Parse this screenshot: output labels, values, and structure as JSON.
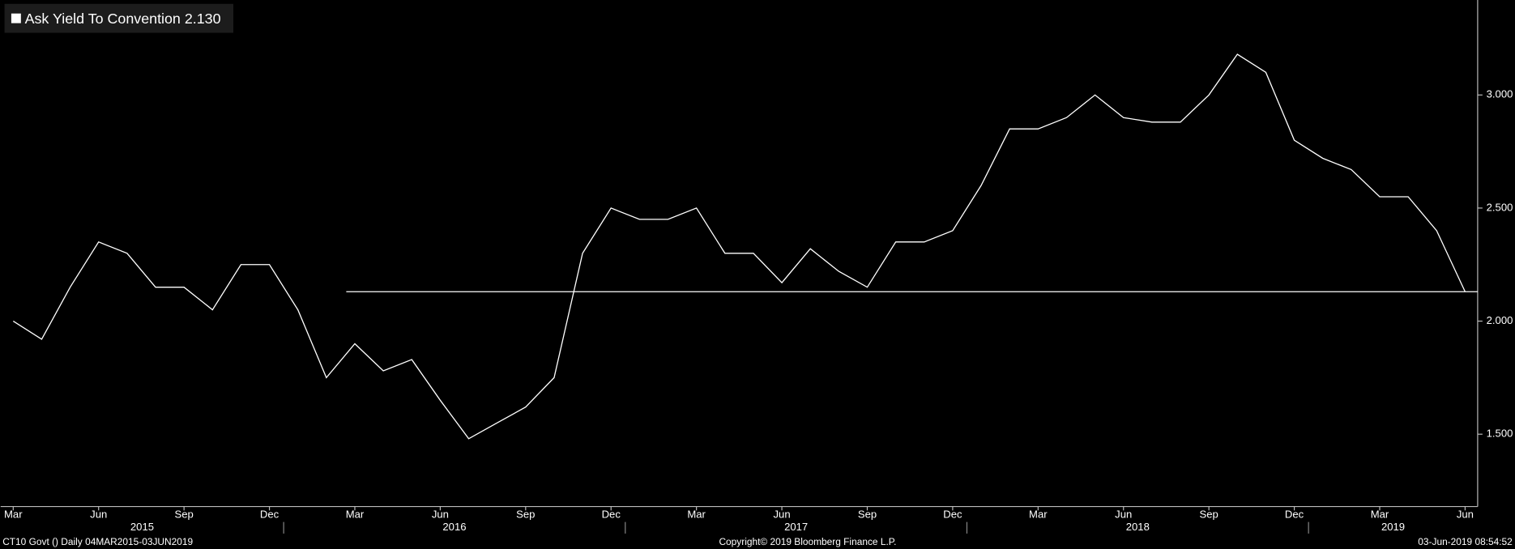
{
  "chart_data": {
    "type": "line",
    "x": [
      "2015-03",
      "2015-04",
      "2015-05",
      "2015-06",
      "2015-07",
      "2015-08",
      "2015-09",
      "2015-10",
      "2015-11",
      "2015-12",
      "2016-01",
      "2016-02",
      "2016-03",
      "2016-04",
      "2016-05",
      "2016-06",
      "2016-07",
      "2016-08",
      "2016-09",
      "2016-10",
      "2016-11",
      "2016-12",
      "2017-01",
      "2017-02",
      "2017-03",
      "2017-04",
      "2017-05",
      "2017-06",
      "2017-07",
      "2017-08",
      "2017-09",
      "2017-10",
      "2017-11",
      "2017-12",
      "2018-01",
      "2018-02",
      "2018-03",
      "2018-04",
      "2018-05",
      "2018-06",
      "2018-07",
      "2018-08",
      "2018-09",
      "2018-10",
      "2018-11",
      "2018-12",
      "2019-01",
      "2019-02",
      "2019-03",
      "2019-04",
      "2019-05",
      "2019-06"
    ],
    "series": [
      {
        "name": "Ask Yield To Convention",
        "color": "#ffffff",
        "values": [
          2.0,
          1.92,
          2.15,
          2.35,
          2.3,
          2.15,
          2.15,
          2.05,
          2.25,
          2.25,
          2.05,
          1.75,
          1.9,
          1.78,
          1.83,
          1.65,
          1.48,
          1.55,
          1.62,
          1.75,
          2.3,
          2.5,
          2.45,
          2.45,
          2.5,
          2.3,
          2.3,
          2.17,
          2.32,
          2.22,
          2.15,
          2.35,
          2.35,
          2.4,
          2.6,
          2.85,
          2.85,
          2.9,
          3.0,
          2.9,
          2.88,
          2.88,
          3.0,
          3.18,
          3.1,
          2.8,
          2.72,
          2.67,
          2.55,
          2.55,
          2.4,
          2.13
        ]
      }
    ],
    "reference_line": {
      "value": 2.13,
      "label": "2.130"
    },
    "xlim": [
      "2015-03",
      "2019-06"
    ],
    "xticks": [
      {
        "value": "2015-03",
        "label": "Mar"
      },
      {
        "value": "2015-06",
        "label": "Jun"
      },
      {
        "value": "2015-09",
        "label": "Sep"
      },
      {
        "value": "2015-12",
        "label": "Dec"
      },
      {
        "value": "2016-03",
        "label": "Mar"
      },
      {
        "value": "2016-06",
        "label": "Jun"
      },
      {
        "value": "2016-09",
        "label": "Sep"
      },
      {
        "value": "2016-12",
        "label": "Dec"
      },
      {
        "value": "2017-03",
        "label": "Mar"
      },
      {
        "value": "2017-06",
        "label": "Jun"
      },
      {
        "value": "2017-09",
        "label": "Sep"
      },
      {
        "value": "2017-12",
        "label": "Dec"
      },
      {
        "value": "2018-03",
        "label": "Mar"
      },
      {
        "value": "2018-06",
        "label": "Jun"
      },
      {
        "value": "2018-09",
        "label": "Sep"
      },
      {
        "value": "2018-12",
        "label": "Dec"
      },
      {
        "value": "2019-03",
        "label": "Mar"
      },
      {
        "value": "2019-06",
        "label": "Jun"
      }
    ],
    "year_labels": [
      "2015",
      "2016",
      "2017",
      "2018",
      "2019"
    ],
    "ylim": [
      1.18,
      3.42
    ],
    "yticks": [
      {
        "value": 1.5,
        "label": "1.500"
      },
      {
        "value": 2.0,
        "label": "2.000"
      },
      {
        "value": 2.5,
        "label": "2.500"
      },
      {
        "value": 3.0,
        "label": "3.000"
      }
    ],
    "footer": {
      "left": "CT10 Govt ()  Daily 04MAR2015-03JUN2019",
      "center": "Copyright© 2019 Bloomberg Finance L.P.",
      "right": "03-Jun-2019 08:54:52"
    }
  }
}
